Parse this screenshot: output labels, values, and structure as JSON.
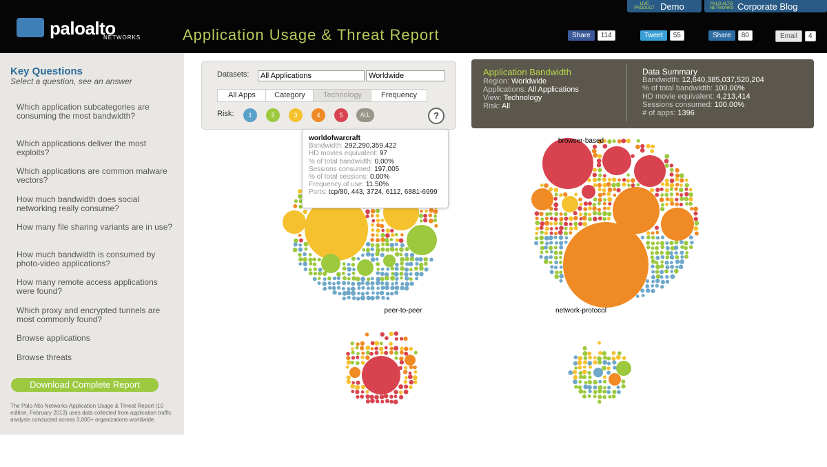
{
  "header": {
    "logo": "paloalto",
    "logo_sub": "NETWORKS",
    "title": "Application Usage & Threat Report",
    "links": [
      {
        "badge": "LIVE PRODUCT",
        "label": "Demo"
      },
      {
        "badge": "PALO ALTO NETWORKS",
        "label": "Corporate Blog"
      }
    ],
    "social": [
      {
        "label": "Share",
        "count": 114
      },
      {
        "label": "Tweet",
        "count": 55
      },
      {
        "label": "Share",
        "count": 80
      },
      {
        "label": "Email",
        "count": 4
      }
    ]
  },
  "sidebar": {
    "title": "Key Questions",
    "subtitle": "Select a question, see an answer",
    "questions": [
      "Which application subcategories are consuming the most bandwidth?",
      "Which applications deliver the most exploits?",
      "Which applications are common malware vectors?",
      "How much bandwidth does social networking really consume?",
      "How many file sharing variants are in use?",
      "How much bandwidth is consumed by photo-video applications?",
      "How many remote access applications were found?",
      "Which proxy and encrypted tunnels are most commonly found?",
      "Browse applications",
      "Browse threats"
    ],
    "download": "Download Complete Report",
    "footnote": "The Palo Alto Networks Application Usage & Threat Report (10 edition, February 2013) uses data collected from application traffic analysis conducted across 3,000+ organizations worldwide."
  },
  "controls": {
    "datasets_label": "Datasets:",
    "dataset": "All Applications",
    "region": "Worldwide",
    "tabs": [
      "All Apps",
      "Category",
      "Technology",
      "Frequency"
    ],
    "risk_label": "Risk:",
    "risk_levels": [
      1,
      2,
      3,
      4,
      5,
      "ALL"
    ],
    "help": "?"
  },
  "bandwidth": {
    "title": "Application Bandwidth",
    "rows": [
      {
        "label": "Region:",
        "value": "Worldwide"
      },
      {
        "label": "Applications:",
        "value": "All Applications"
      },
      {
        "label": "View:",
        "value": "Technology"
      },
      {
        "label": "Risk:",
        "value": "All"
      }
    ]
  },
  "summary": {
    "title": "Data Summary",
    "rows": [
      {
        "label": "Bandwidth:",
        "value": "12,640,385,037,520,204"
      },
      {
        "label": "% of total bandwidth:",
        "value": "100.00%"
      },
      {
        "label": "HD movie equivalent:",
        "value": "4,213,414"
      },
      {
        "label": "Sessions consumed:",
        "value": "100.00%"
      },
      {
        "label": "# of apps:",
        "value": "1396"
      }
    ]
  },
  "tooltip": {
    "title": "worldofwarcraft",
    "rows": [
      {
        "label": "Bandwidth:",
        "value": "292,290,359,422"
      },
      {
        "label": "HD movies equivalent:",
        "value": "97"
      },
      {
        "label": "% of total bandwidth:",
        "value": "0.00%"
      },
      {
        "label": "Sessions consumed:",
        "value": "197,005"
      },
      {
        "label": "% of total sessions:",
        "value": "0.00%"
      },
      {
        "label": "Frequency of use:",
        "value": "11.50%"
      },
      {
        "label": "Ports:",
        "value": "tcp/80, 443, 3724, 6112, 6881-6999"
      }
    ]
  },
  "clusters": [
    "browser-based",
    "peer-to-peer",
    "network-protocol"
  ]
}
